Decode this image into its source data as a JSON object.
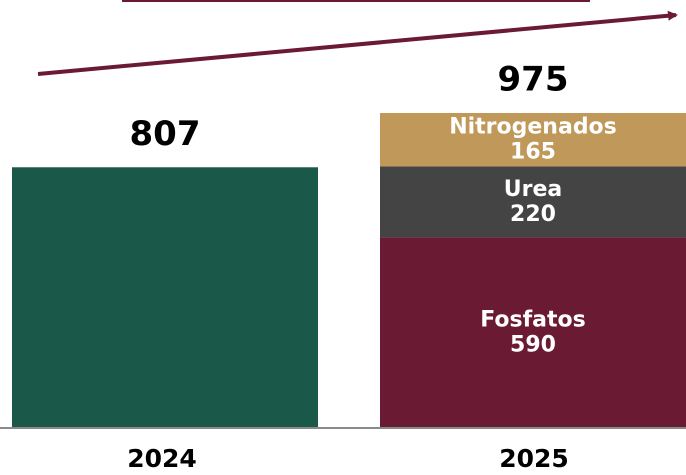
{
  "chart_data": {
    "type": "stacked-bar",
    "categories": [
      "2024",
      "2025"
    ],
    "totals": [
      807,
      975
    ],
    "series": [
      {
        "color": "#1a584a",
        "values": [
          807,
          null
        ]
      },
      {
        "name": "Fosfatos",
        "color": "#6b1a33",
        "values": [
          null,
          590
        ]
      },
      {
        "name": "Urea",
        "color": "#444444",
        "values": [
          null,
          220
        ]
      },
      {
        "name": "Nitrogenados",
        "color": "#bf985a",
        "values": [
          null,
          165
        ]
      }
    ]
  }
}
